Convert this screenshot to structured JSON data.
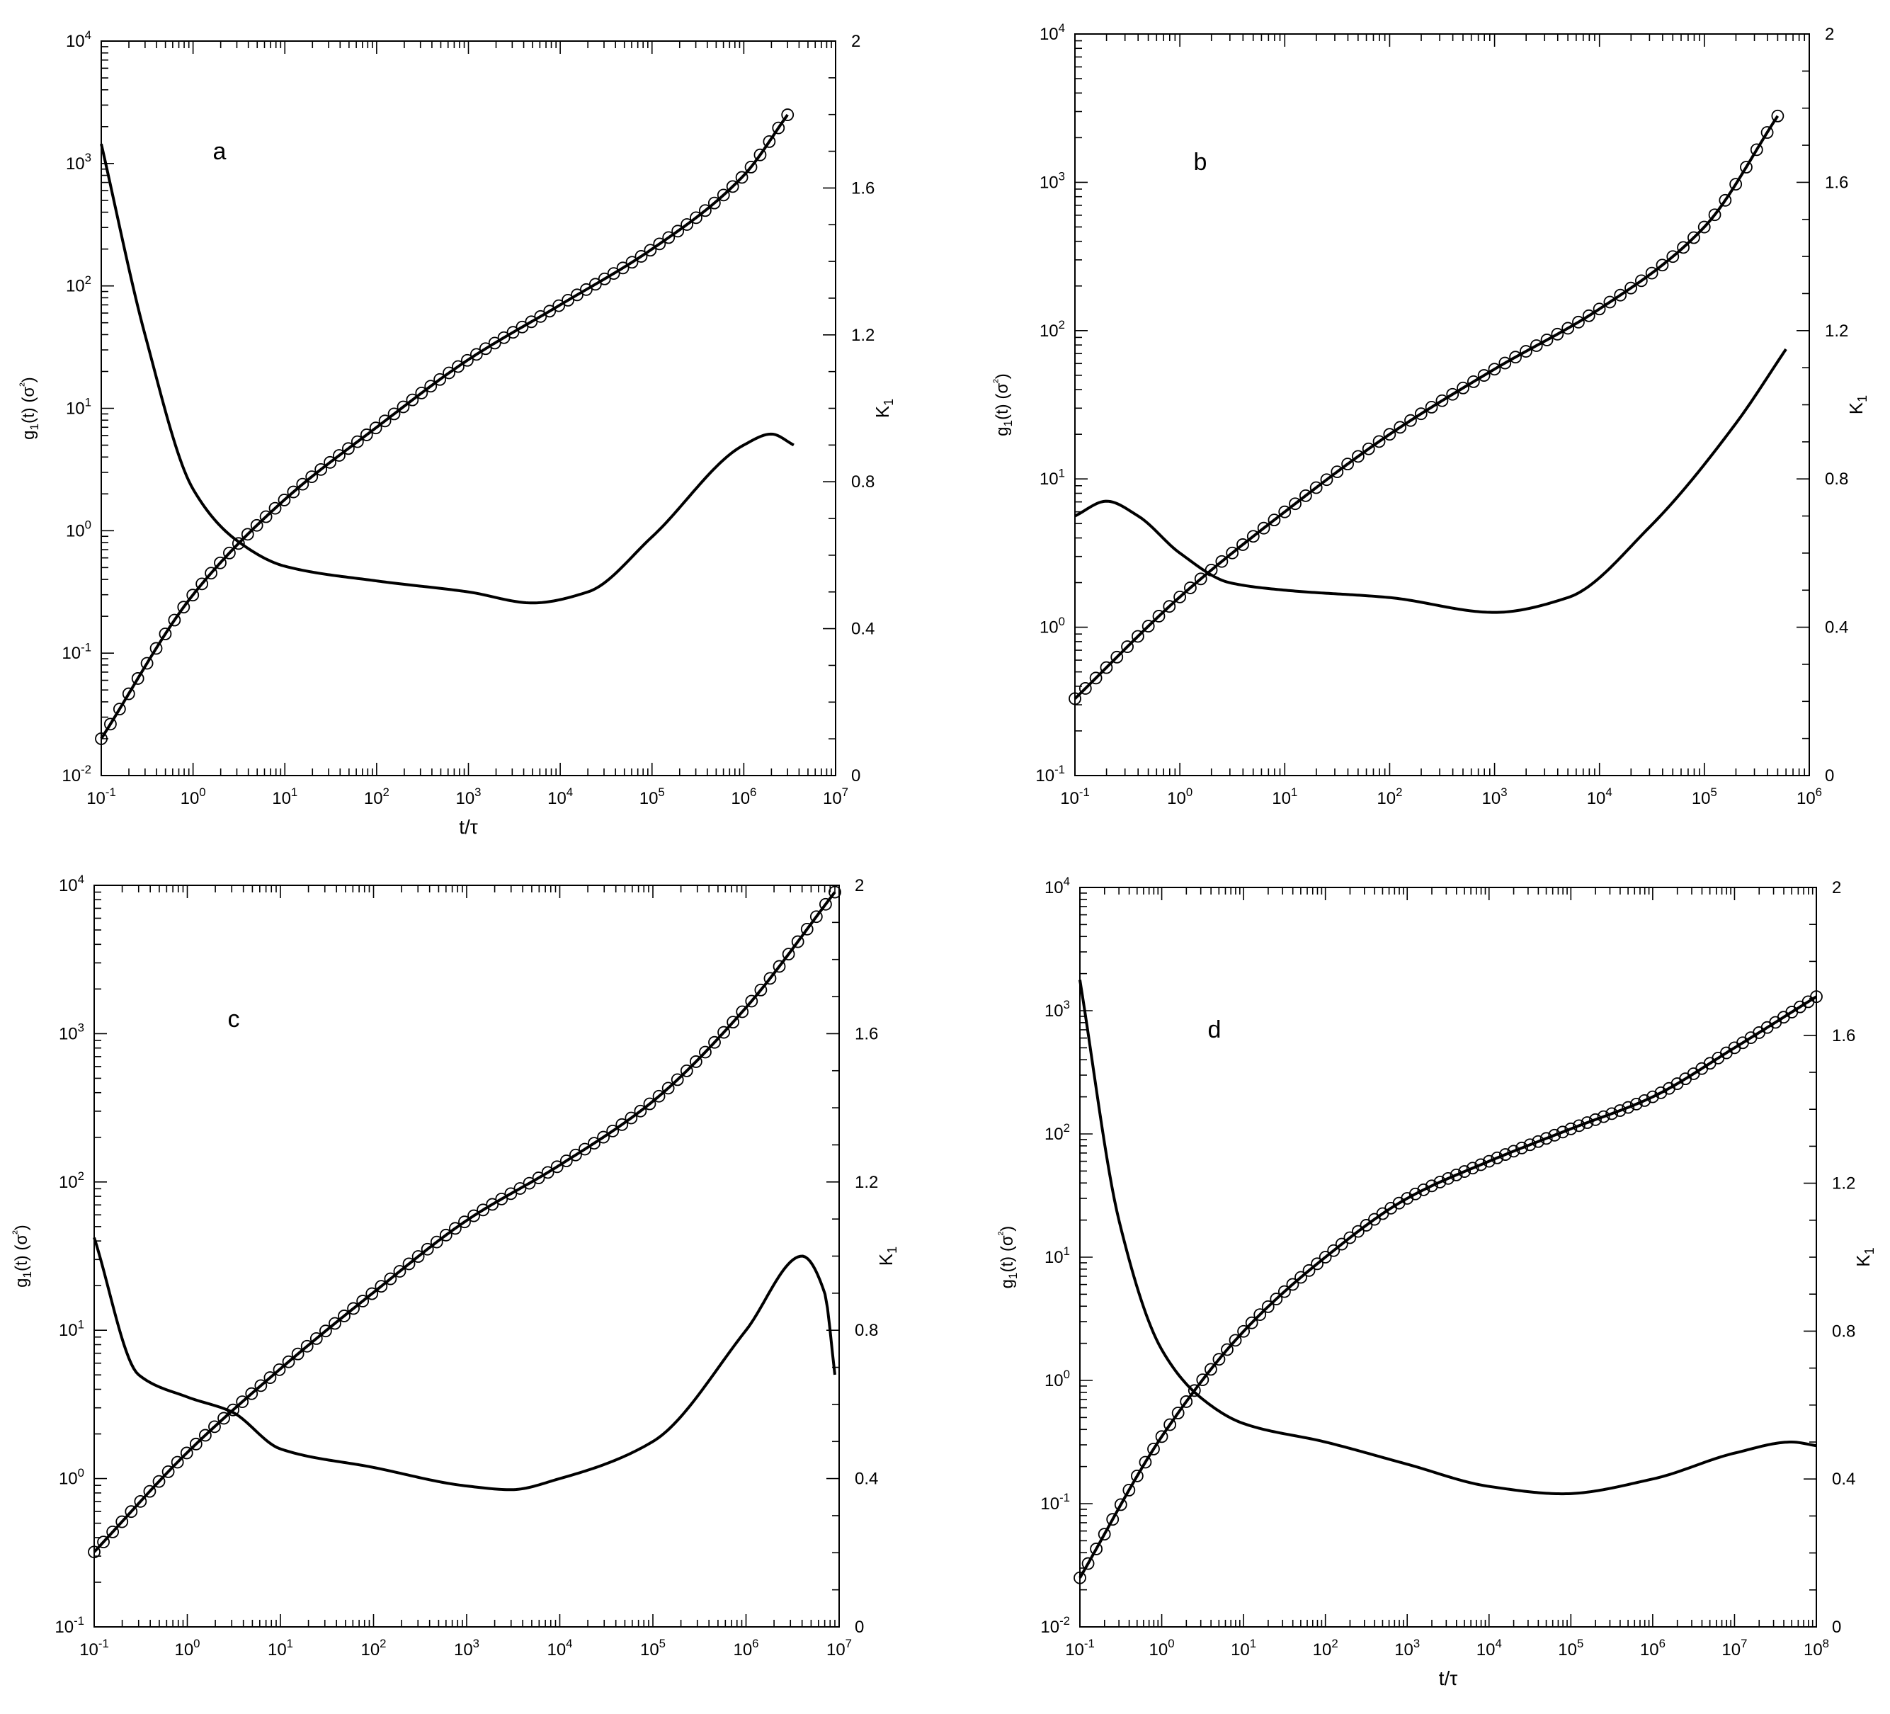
{
  "figure": {
    "panels": [
      {
        "id": "a",
        "label": "a",
        "y_left_label": "g1(t) (σ²)",
        "y_right_label": "K1",
        "x_label": "t/τ",
        "x_ticks": [
          "10-1",
          "100",
          "101",
          "102",
          "103",
          "104",
          "105",
          "106",
          "107"
        ],
        "y_left_ticks": [
          "10-2",
          "10-1",
          "100",
          "101",
          "102",
          "103",
          "104"
        ],
        "y_right_ticks": [
          "0",
          "0.4",
          "0.8",
          "1.2",
          "1.6",
          "2"
        ]
      },
      {
        "id": "b",
        "label": "b",
        "y_left_label": "g1(t) (σ²)",
        "y_right_label": "K1",
        "x_label": "",
        "x_ticks": [
          "10-1",
          "100",
          "101",
          "102",
          "103",
          "104",
          "105",
          "106"
        ],
        "y_left_ticks": [
          "10-1",
          "100",
          "101",
          "102",
          "103",
          "104"
        ],
        "y_right_ticks": [
          "0",
          "0.4",
          "0.8",
          "1.2",
          "1.6",
          "2"
        ]
      },
      {
        "id": "c",
        "label": "c",
        "y_left_label": "g1(t) (σ²)",
        "y_right_label": "K1",
        "x_label": "",
        "x_ticks": [
          "10-1",
          "100",
          "101",
          "102",
          "103",
          "104",
          "105",
          "106",
          "107"
        ],
        "y_left_ticks": [
          "10-1",
          "100",
          "101",
          "102",
          "103",
          "104"
        ],
        "y_right_ticks": [
          "0",
          "0.4",
          "0.8",
          "1.2",
          "1.6",
          "2"
        ]
      },
      {
        "id": "d",
        "label": "d",
        "y_left_label": "g1(t) (σ²)",
        "y_right_label": "K1",
        "x_label": "t/τ",
        "x_ticks": [
          "10-1",
          "100",
          "101",
          "102",
          "103",
          "104",
          "105",
          "106",
          "107",
          "108"
        ],
        "y_left_ticks": [
          "10-2",
          "10-1",
          "100",
          "101",
          "102",
          "103",
          "104"
        ],
        "y_right_ticks": [
          "0",
          "0.4",
          "0.8",
          "1.2",
          "1.6",
          "2"
        ]
      }
    ]
  },
  "chart_data": [
    {
      "type": "line",
      "panel": "a",
      "xscale": "log",
      "yscale_left": "log",
      "xlim": [
        0.1,
        10000000
      ],
      "ylim_left": [
        0.01,
        10000
      ],
      "ylim_right": [
        0,
        2
      ],
      "xlabel": "t/τ",
      "ylabel_left": "g1(t) (σ²)",
      "ylabel_right": "K1",
      "series": [
        {
          "axis": "left",
          "style": "line+circles",
          "x": [
            0.1,
            1,
            10,
            100,
            1000,
            10000,
            100000,
            1000000,
            3000000
          ],
          "y": [
            0.02,
            0.3,
            1.8,
            7,
            25,
            70,
            200,
            800,
            2500
          ]
        },
        {
          "axis": "right",
          "style": "line",
          "x": [
            0.1,
            0.3,
            1,
            3,
            10,
            100,
            1000,
            5000,
            20000,
            100000,
            1000000,
            2000000,
            3500000
          ],
          "y": [
            1.72,
            1.2,
            0.78,
            0.64,
            0.57,
            0.53,
            0.5,
            0.47,
            0.5,
            0.65,
            0.9,
            0.93,
            0.9
          ]
        }
      ]
    },
    {
      "type": "line",
      "panel": "b",
      "xscale": "log",
      "yscale_left": "log",
      "xlim": [
        0.1,
        1000000
      ],
      "ylim_left": [
        0.1,
        10000
      ],
      "ylim_right": [
        0,
        2
      ],
      "xlabel": "",
      "ylabel_left": "g1(t) (σ²)",
      "ylabel_right": "K1",
      "series": [
        {
          "axis": "left",
          "style": "line+circles",
          "x": [
            0.1,
            1,
            10,
            100,
            1000,
            10000,
            100000,
            500000
          ],
          "y": [
            0.33,
            1.6,
            6,
            20,
            55,
            140,
            500,
            2800
          ]
        },
        {
          "axis": "right",
          "style": "line",
          "x": [
            0.1,
            0.2,
            0.4,
            1,
            3,
            10,
            100,
            1000,
            5000,
            30000,
            200000,
            600000
          ],
          "y": [
            0.7,
            0.74,
            0.7,
            0.6,
            0.52,
            0.5,
            0.48,
            0.44,
            0.48,
            0.67,
            0.95,
            1.15
          ]
        }
      ]
    },
    {
      "type": "line",
      "panel": "c",
      "xscale": "log",
      "yscale_left": "log",
      "xlim": [
        0.1,
        10000000
      ],
      "ylim_left": [
        0.1,
        10000
      ],
      "ylim_right": [
        0,
        2
      ],
      "xlabel": "",
      "ylabel_left": "g1(t) (σ²)",
      "ylabel_right": "K1",
      "series": [
        {
          "axis": "left",
          "style": "line+circles",
          "x": [
            0.1,
            1,
            10,
            100,
            1000,
            10000,
            100000,
            1000000,
            9000000
          ],
          "y": [
            0.32,
            1.5,
            5.5,
            18,
            55,
            130,
            350,
            1500,
            9000
          ]
        },
        {
          "axis": "right",
          "style": "line",
          "x": [
            0.1,
            0.3,
            1,
            3,
            10,
            100,
            1000,
            3000,
            10000,
            100000,
            1000000,
            4000000,
            7000000,
            9000000
          ],
          "y": [
            1.05,
            0.68,
            0.62,
            0.58,
            0.48,
            0.43,
            0.38,
            0.37,
            0.4,
            0.5,
            0.8,
            1.0,
            0.9,
            0.68
          ]
        }
      ]
    },
    {
      "type": "line",
      "panel": "d",
      "xscale": "log",
      "yscale_left": "log",
      "xlim": [
        0.1,
        100000000
      ],
      "ylim_left": [
        0.01,
        10000
      ],
      "ylim_right": [
        0,
        2
      ],
      "xlabel": "t/τ",
      "ylabel_left": "g1(t) (σ²)",
      "ylabel_right": "K1",
      "series": [
        {
          "axis": "left",
          "style": "line+circles",
          "x": [
            0.1,
            1,
            10,
            100,
            1000,
            10000,
            100000,
            1000000,
            10000000,
            100000000
          ],
          "y": [
            0.025,
            0.35,
            2.5,
            10,
            30,
            60,
            110,
            200,
            500,
            1300
          ]
        },
        {
          "axis": "right",
          "style": "line",
          "x": [
            0.1,
            0.3,
            1,
            3,
            10,
            100,
            1000,
            10000,
            80000,
            1000000,
            10000000,
            50000000,
            100000000
          ],
          "y": [
            1.75,
            1.1,
            0.75,
            0.62,
            0.55,
            0.5,
            0.44,
            0.38,
            0.36,
            0.4,
            0.47,
            0.5,
            0.49
          ]
        }
      ]
    }
  ]
}
